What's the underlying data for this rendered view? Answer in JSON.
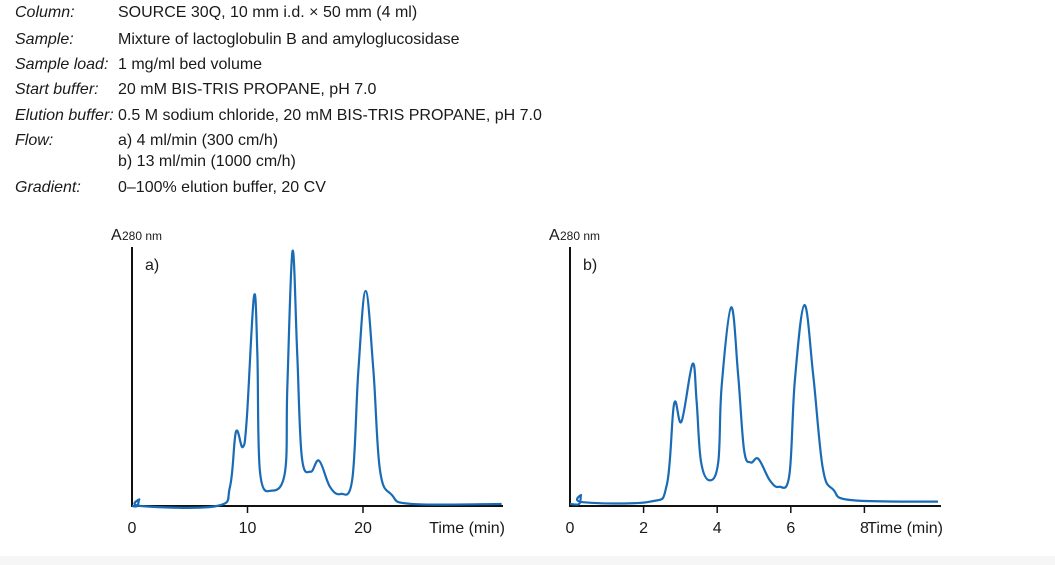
{
  "conditions": [
    {
      "label": "Column:",
      "value": "SOURCE 30Q, 10 mm i.d. × 50 mm (4 ml)"
    },
    {
      "label": "Sample:",
      "value": "Mixture of lactoglobulin B and amyloglucosidase"
    },
    {
      "label": "Sample load:",
      "value": "1 mg/ml bed volume"
    },
    {
      "label": "Start buffer:",
      "value": "20 mM BIS-TRIS PROPANE, pH 7.0"
    },
    {
      "label": "Elution buffer:",
      "value": "0.5 M sodium chloride, 20 mM BIS-TRIS PROPANE, pH 7.0"
    },
    {
      "label": "Flow:",
      "value": "a) 4 ml/min (300 cm/h)"
    },
    {
      "label": "",
      "value": "b) 13 ml/min (1000 cm/h)"
    },
    {
      "label": "Gradient:",
      "value": "0–100% elution buffer, 20 CV"
    }
  ],
  "chart_data": [
    {
      "type": "line",
      "panel_label": "a)",
      "ylabel": "A",
      "ylabel_sub": "280 nm",
      "xlabel": "Time (min)",
      "xticks": [
        0,
        10,
        20
      ],
      "xlim": [
        0,
        32
      ],
      "ylim": [
        0,
        100
      ],
      "grid": false,
      "color": "#1a6bb5",
      "x": [
        0,
        0.46,
        0.63,
        0.78,
        7.33,
        8.48,
        9.0,
        9.58,
        9.93,
        10.56,
        10.85,
        11.08,
        12.1,
        13.25,
        13.45,
        13.9,
        14.3,
        14.7,
        15.47,
        16.2,
        17.14,
        18.07,
        19.07,
        19.6,
        20.23,
        20.9,
        21.47,
        22.5,
        24.2,
        32
      ],
      "y": [
        0,
        0,
        2.6,
        0,
        0,
        7.5,
        29,
        23,
        33.6,
        81.8,
        60,
        13.4,
        6,
        13.4,
        46.6,
        99.6,
        60,
        19.3,
        13.4,
        17.7,
        7.5,
        4.7,
        10.4,
        53,
        84,
        53,
        14,
        4.3,
        0.8,
        0.8
      ]
    },
    {
      "type": "line",
      "panel_label": "b)",
      "ylabel": "A",
      "ylabel_sub": "280 nm",
      "xlabel": "Time (min)",
      "xticks": [
        0,
        2,
        4,
        6,
        8
      ],
      "xlim": [
        0,
        10.08
      ],
      "ylim": [
        0,
        100
      ],
      "grid": false,
      "color": "#1a6bb5",
      "x": [
        0,
        0.25,
        0.3,
        0.35,
        2.17,
        2.63,
        2.83,
        3.03,
        3.33,
        3.44,
        3.56,
        3.8,
        4.03,
        4.12,
        4.38,
        4.57,
        4.73,
        4.91,
        5.12,
        5.43,
        5.68,
        5.96,
        6.11,
        6.37,
        6.61,
        6.87,
        7.16,
        7.65,
        10.0
      ],
      "y": [
        0.8,
        0.8,
        4.3,
        1.5,
        1.7,
        8.2,
        40,
        33,
        55.5,
        41,
        17.3,
        10,
        17.3,
        46.6,
        77.6,
        51,
        21.9,
        17,
        18.4,
        10,
        7.5,
        12,
        49,
        78.5,
        51,
        14.7,
        6.3,
        2.3,
        1.7
      ]
    }
  ]
}
